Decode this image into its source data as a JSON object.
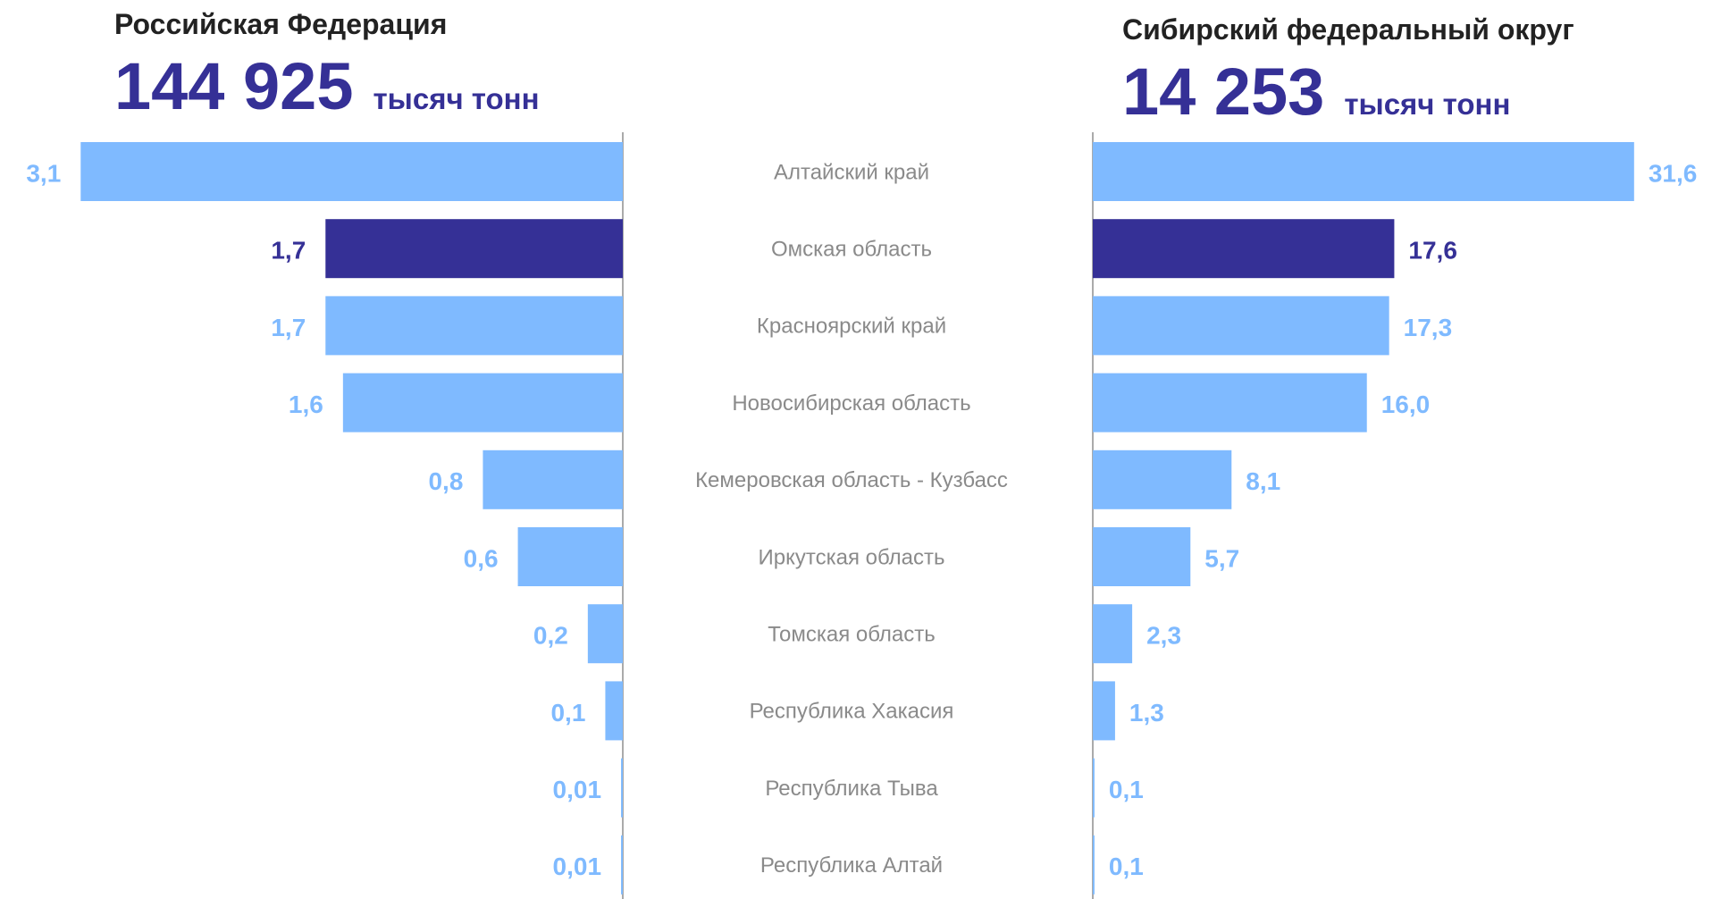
{
  "chart_data": [
    {
      "type": "bar",
      "orientation": "horizontal",
      "direction": "left",
      "title": "Российская Федерация",
      "total": "144 925",
      "unit": "тысяч тонн",
      "categories": [
        "Алтайский край",
        "Омская область",
        "Красноярский край",
        "Новосибирская область",
        "Кемеровская область - Кузбасс",
        "Иркутская область",
        "Томская область",
        "Республика Хакасия",
        "Республика Тыва",
        "Республика Алтай"
      ],
      "values": [
        3.1,
        1.7,
        1.7,
        1.6,
        0.8,
        0.6,
        0.2,
        0.1,
        0.01,
        0.01
      ],
      "value_labels": [
        "3,1",
        "1,7",
        "1,7",
        "1,6",
        "0,8",
        "0,6",
        "0,2",
        "0,1",
        "0,01",
        "0,01"
      ],
      "colors": [
        "#7fbaff",
        "#353096",
        "#7fbaff",
        "#7fbaff",
        "#7fbaff",
        "#7fbaff",
        "#7fbaff",
        "#7fbaff",
        "#7fbaff",
        "#7fbaff"
      ],
      "xlim": [
        0,
        3.5
      ]
    },
    {
      "type": "bar",
      "orientation": "horizontal",
      "direction": "right",
      "title": "Сибирский федеральный округ",
      "total": "14 253",
      "unit": "тысяч тонн",
      "values": [
        31.6,
        17.6,
        17.3,
        16.0,
        8.1,
        5.7,
        2.3,
        1.3,
        0.1,
        0.1
      ],
      "value_labels": [
        "31,6",
        "17,6",
        "17,3",
        "16,0",
        "8,1",
        "5,7",
        "2,3",
        "1,3",
        "0,1",
        "0,1"
      ],
      "colors": [
        "#7fbaff",
        "#353096",
        "#7fbaff",
        "#7fbaff",
        "#7fbaff",
        "#7fbaff",
        "#7fbaff",
        "#7fbaff",
        "#7fbaff",
        "#7fbaff"
      ],
      "xlim": [
        0,
        35
      ]
    }
  ]
}
